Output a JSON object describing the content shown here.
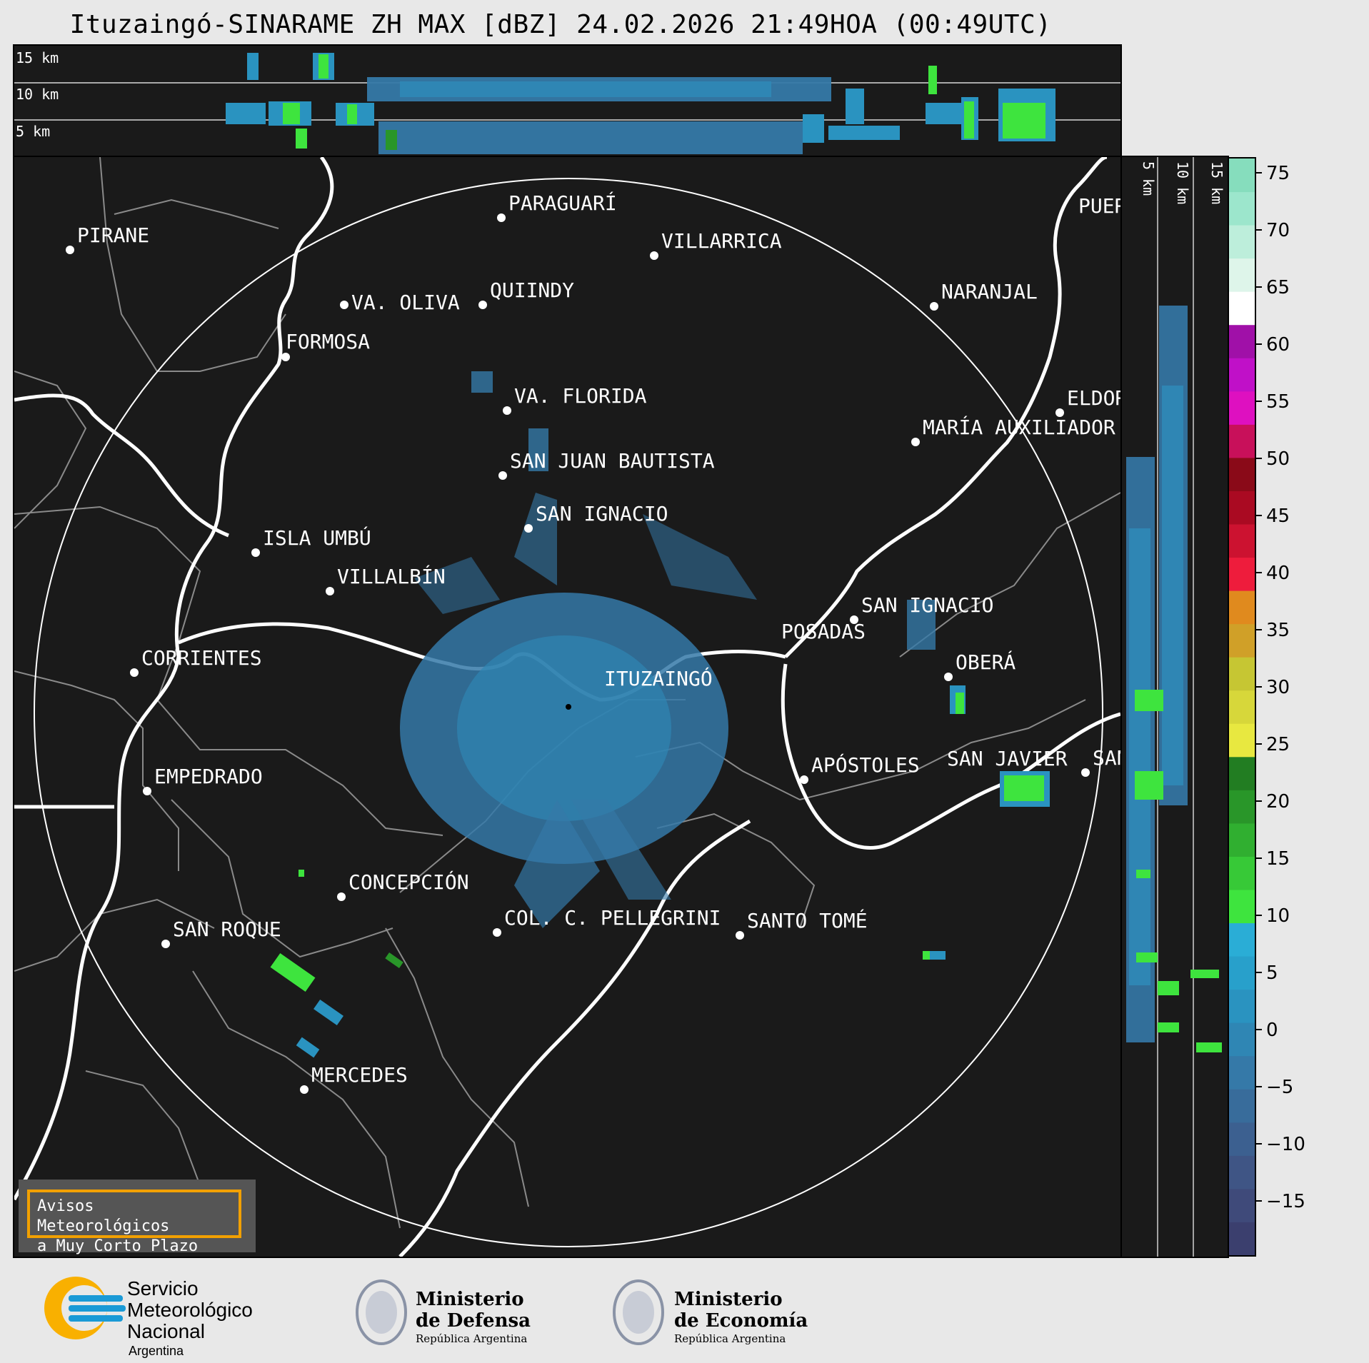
{
  "title": "Ituzaingó-SINARAME ZH MAX [dBZ] 24.02.2026 21:49HOA (00:49UTC)",
  "top_profile": {
    "height_labels": [
      "15 km",
      "10 km",
      "5 km"
    ]
  },
  "side_profile": {
    "height_labels": [
      "5 km",
      "10 km",
      "15 km"
    ]
  },
  "cities": [
    {
      "name": "PARAGUARÍ"
    },
    {
      "name": "PIRANE"
    },
    {
      "name": "VILLARRICA"
    },
    {
      "name": "VA. OLIVA"
    },
    {
      "name": "QUIINDY"
    },
    {
      "name": "NARANJAL"
    },
    {
      "name": "FORMOSA"
    },
    {
      "name": "PUER"
    },
    {
      "name": "VA. FLORIDA"
    },
    {
      "name": "ELDOR"
    },
    {
      "name": "MARÍA AUXILIADOR"
    },
    {
      "name": "SAN JUAN BAUTISTA"
    },
    {
      "name": "SAN IGNACIO"
    },
    {
      "name": "ISLA UMBÚ"
    },
    {
      "name": "VILLALBÍN"
    },
    {
      "name": "SAN IGNACIO"
    },
    {
      "name": "POSADAS"
    },
    {
      "name": "CORRIENTES"
    },
    {
      "name": "ITUZAINGÓ"
    },
    {
      "name": "OBERÁ"
    },
    {
      "name": "EMPEDRADO"
    },
    {
      "name": "APÓSTOLES"
    },
    {
      "name": "SAN JAVIER"
    },
    {
      "name": "SAN"
    },
    {
      "name": "CONCEPCIÓN"
    },
    {
      "name": "COL. C. PELLEGRINI"
    },
    {
      "name": "SANTO TOMÉ"
    },
    {
      "name": "SAN ROQUE"
    },
    {
      "name": "MERCEDES"
    }
  ],
  "colorbar": {
    "ticks": [
      "75",
      "70",
      "65",
      "60",
      "55",
      "50",
      "45",
      "40",
      "35",
      "30",
      "25",
      "20",
      "15",
      "10",
      "5",
      "0",
      "−5",
      "−10",
      "−15"
    ],
    "colors": [
      "#3b3f6e",
      "#3f4a7a",
      "#3f5585",
      "#3c6090",
      "#386c9b",
      "#3579a8",
      "#2f86b4",
      "#2a93c0",
      "#28a0cb",
      "#2aadd6",
      "#3ee43e",
      "#37c937",
      "#30af30",
      "#299629",
      "#227d22",
      "#e8e840",
      "#d7d73a",
      "#c6c633",
      "#d0a028",
      "#e08a1e",
      "#ee1c3c",
      "#cc1230",
      "#aa0a22",
      "#8a0a18",
      "#c8105a",
      "#de10c0",
      "#c010c8",
      "#a010a8",
      "#ffffff",
      "#def5ea",
      "#bdeedb",
      "#9ce6cc",
      "#86ddbd"
    ]
  },
  "warning_box": {
    "line1": "Avisos Meteorológicos",
    "line2": "a Muy Corto Plazo"
  },
  "logos": {
    "smn_line1": "Servicio",
    "smn_line2": "Meteorológico",
    "smn_line3": "Nacional",
    "smn_line4": "Argentina",
    "def_line1": "Ministerio",
    "def_line2": "de Defensa",
    "def_line3": "República Argentina",
    "eco_line1": "Ministerio",
    "eco_line2": "de Economía",
    "eco_line3": "República Argentina"
  }
}
